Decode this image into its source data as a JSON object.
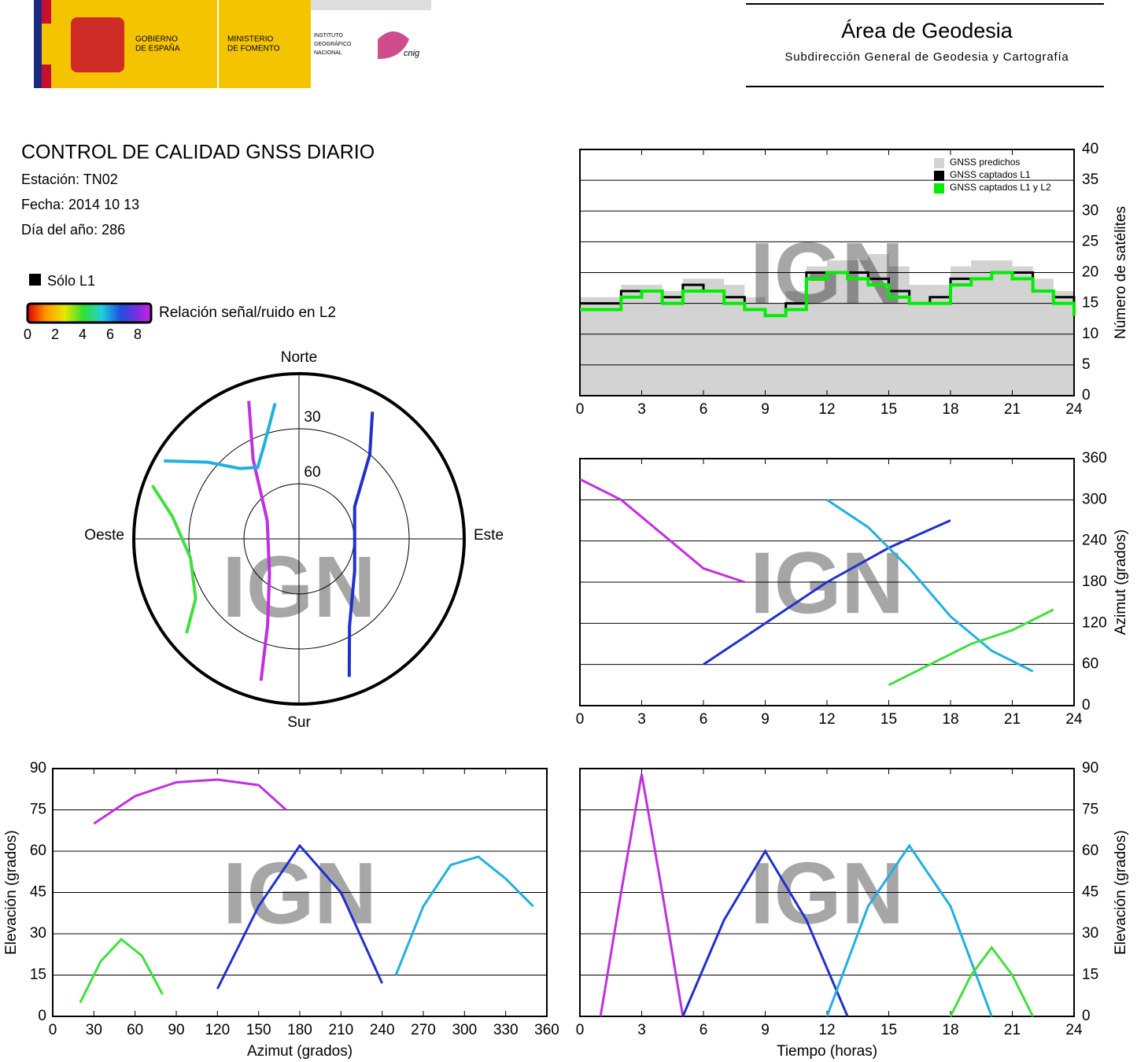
{
  "header": {
    "gov": [
      "GOBIERNO",
      "DE ESPAÑA"
    ],
    "ministry": [
      "MINISTERIO",
      "DE FOMENTO"
    ],
    "institute": [
      "INSTITUTO",
      "GEOGRÁFICO",
      "NACIONAL"
    ],
    "cnig": "cnig",
    "area": "Área de Geodesia",
    "subarea": "Subdirección General de Geodesia y Cartografía"
  },
  "report": {
    "title": "CONTROL DE CALIDAD GNSS DIARIO",
    "station": "Estación: TN02",
    "date": "Fecha: 2014 10 13",
    "doy": "Día del año: 286",
    "only_l1": "Sólo L1",
    "colorbar": {
      "label": "Relación señal/ruido en L2",
      "lim": [
        0,
        9
      ],
      "ticks": [
        0,
        2,
        4,
        6,
        8
      ]
    }
  },
  "watermark": "IGN",
  "chart_data": [
    {
      "type": "step",
      "ylabel": "Número de satélites",
      "xlim": [
        0,
        24
      ],
      "ylim": [
        0,
        40
      ],
      "xticks": [
        0,
        3,
        6,
        9,
        12,
        15,
        18,
        21,
        24
      ],
      "yticks": [
        0,
        5,
        10,
        15,
        20,
        25,
        30,
        35,
        40
      ],
      "grid": true,
      "legend": "upper right",
      "x": [
        0,
        1,
        2,
        3,
        4,
        5,
        6,
        7,
        8,
        9,
        10,
        11,
        12,
        13,
        14,
        15,
        16,
        17,
        18,
        19,
        20,
        21,
        22,
        23,
        24
      ],
      "series": [
        {
          "name": "GNSS predichos",
          "color": "#d3d3d3",
          "fill": true,
          "values": [
            16,
            16,
            18,
            18,
            17,
            19,
            19,
            18,
            16,
            15,
            17,
            21,
            22,
            22,
            23,
            21,
            18,
            18,
            21,
            22,
            22,
            21,
            19,
            17,
            16
          ]
        },
        {
          "name": "GNSS captados L1",
          "color": "#000000",
          "values": [
            15,
            15,
            17,
            17,
            16,
            18,
            17,
            16,
            14,
            13,
            15,
            20,
            20,
            20,
            19,
            17,
            15,
            16,
            19,
            19,
            20,
            20,
            17,
            16,
            14
          ]
        },
        {
          "name": "GNSS captados L1 y L2",
          "color": "#00ee00",
          "values": [
            14,
            14,
            16,
            17,
            15,
            17,
            17,
            15,
            14,
            13,
            14,
            19,
            20,
            19,
            18,
            16,
            15,
            15,
            18,
            19,
            20,
            19,
            17,
            15,
            13
          ]
        }
      ]
    },
    {
      "type": "polar",
      "directions": [
        "Norte",
        "Este",
        "Sur",
        "Oeste"
      ],
      "rings": [
        30,
        60
      ],
      "ylim": [
        0,
        90
      ],
      "series": [
        {
          "color": "#c030e0",
          "azimuth": [
            195,
            200,
            220,
            300,
            330,
            340
          ],
          "elevation": [
            10,
            40,
            65,
            70,
            40,
            10
          ]
        },
        {
          "color": "#2030d0",
          "azimuth": [
            160,
            150,
            120,
            60,
            40,
            30
          ],
          "elevation": [
            10,
            35,
            55,
            55,
            30,
            10
          ]
        },
        {
          "color": "#20b0e0",
          "azimuth": [
            300,
            310,
            320,
            330,
            340,
            350
          ],
          "elevation": [
            5,
            25,
            40,
            45,
            35,
            15
          ]
        },
        {
          "color": "#40e040",
          "azimuth": [
            230,
            240,
            260,
            280,
            290
          ],
          "elevation": [
            10,
            25,
            30,
            20,
            5
          ]
        }
      ]
    },
    {
      "type": "line",
      "ylabel": "Azimut (grados)",
      "xlim": [
        0,
        24
      ],
      "ylim": [
        0,
        360
      ],
      "xticks": [
        0,
        3,
        6,
        9,
        12,
        15,
        18,
        21,
        24
      ],
      "yticks": [
        0,
        60,
        120,
        180,
        240,
        300,
        360
      ],
      "grid": true,
      "series": [
        {
          "color": "#c030e0",
          "x": [
            0,
            2,
            4,
            6,
            8
          ],
          "values": [
            330,
            300,
            250,
            200,
            180
          ]
        },
        {
          "color": "#2030d0",
          "x": [
            6,
            9,
            12,
            15,
            18
          ],
          "values": [
            60,
            120,
            180,
            230,
            270
          ]
        },
        {
          "color": "#20b0e0",
          "x": [
            12,
            14,
            16,
            18,
            20,
            22
          ],
          "values": [
            300,
            260,
            200,
            130,
            80,
            50
          ]
        },
        {
          "color": "#40e040",
          "x": [
            15,
            17,
            19,
            21,
            23
          ],
          "values": [
            30,
            60,
            90,
            110,
            140
          ]
        }
      ]
    },
    {
      "type": "line",
      "xlabel": "Azimut (grados)",
      "ylabel": "Elevación (grados)",
      "xlim": [
        0,
        360
      ],
      "ylim": [
        0,
        90
      ],
      "xticks": [
        0,
        30,
        60,
        90,
        120,
        150,
        180,
        210,
        240,
        270,
        300,
        330,
        360
      ],
      "yticks": [
        0,
        15,
        30,
        45,
        60,
        75,
        90
      ],
      "grid": true,
      "series": [
        {
          "color": "#c030e0",
          "x": [
            30,
            60,
            90,
            120,
            150,
            170
          ],
          "values": [
            70,
            80,
            85,
            86,
            84,
            75
          ]
        },
        {
          "color": "#2030d0",
          "x": [
            120,
            150,
            180,
            210,
            240
          ],
          "values": [
            10,
            40,
            62,
            45,
            12
          ]
        },
        {
          "color": "#20b0e0",
          "x": [
            250,
            270,
            290,
            310,
            330,
            350
          ],
          "values": [
            15,
            40,
            55,
            58,
            50,
            40
          ]
        },
        {
          "color": "#40e040",
          "x": [
            20,
            35,
            50,
            65,
            80
          ],
          "values": [
            5,
            20,
            28,
            22,
            8
          ]
        }
      ]
    },
    {
      "type": "line",
      "xlabel": "Tiempo (horas)",
      "ylabel": "Elevación (grados)",
      "xlim": [
        0,
        24
      ],
      "ylim": [
        0,
        90
      ],
      "xticks": [
        0,
        3,
        6,
        9,
        12,
        15,
        18,
        21,
        24
      ],
      "yticks": [
        0,
        15,
        30,
        45,
        60,
        75,
        90
      ],
      "grid": true,
      "series": [
        {
          "color": "#c030e0",
          "x": [
            1,
            2,
            3,
            4,
            5
          ],
          "values": [
            0,
            45,
            88,
            45,
            0
          ]
        },
        {
          "color": "#2030d0",
          "x": [
            5,
            7,
            9,
            11,
            13
          ],
          "values": [
            0,
            35,
            60,
            35,
            0
          ]
        },
        {
          "color": "#20b0e0",
          "x": [
            12,
            14,
            16,
            18,
            20
          ],
          "values": [
            0,
            40,
            62,
            40,
            0
          ]
        },
        {
          "color": "#40e040",
          "x": [
            18,
            19,
            20,
            21,
            22
          ],
          "values": [
            0,
            15,
            25,
            15,
            0
          ]
        }
      ]
    }
  ]
}
